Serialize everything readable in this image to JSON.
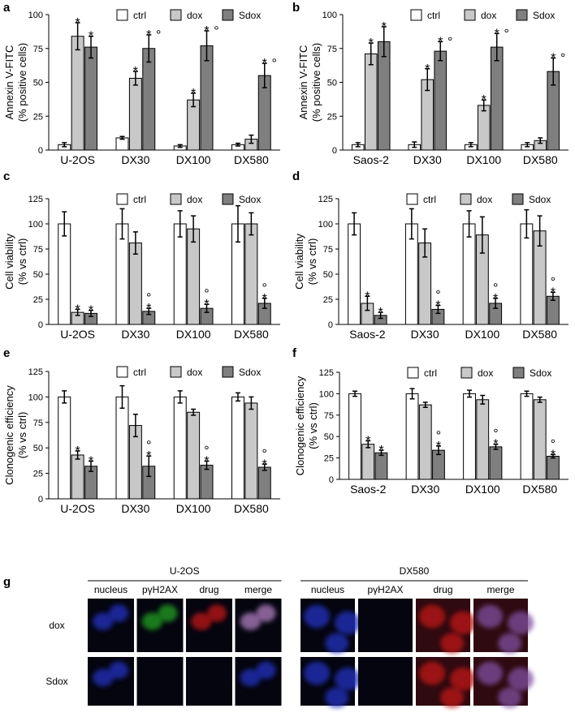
{
  "chart_data": [
    {
      "type": "bar",
      "panel": "a",
      "ylabel": [
        "Annexin V-FITC",
        "(% positive cells)"
      ],
      "categories": [
        "U-2OS",
        "DX30",
        "DX100",
        "DX580"
      ],
      "ylim": [
        0,
        100
      ],
      "yticks": [
        0,
        25,
        50,
        75,
        100
      ],
      "annotation_layout": "inline",
      "series": [
        {
          "name": "ctrl",
          "color": "#ffffff",
          "values": [
            4,
            9,
            3,
            4
          ],
          "errors": [
            1.5,
            1,
            1,
            1
          ]
        },
        {
          "name": "dox",
          "color": "#c8c8c8",
          "values": [
            84,
            53,
            37,
            8
          ],
          "errors": [
            10,
            5,
            5,
            3
          ],
          "annotations": [
            [
              "*"
            ],
            [
              "*"
            ],
            [
              "*"
            ],
            null
          ]
        },
        {
          "name": "Sdox",
          "color": "#7f7f7f",
          "values": [
            76,
            75,
            77,
            55
          ],
          "errors": [
            8,
            10,
            11,
            9
          ],
          "annotations": [
            [
              "*"
            ],
            [
              "*",
              "°"
            ],
            [
              "*",
              "°"
            ],
            [
              "*",
              "°"
            ]
          ]
        }
      ]
    },
    {
      "type": "bar",
      "panel": "b",
      "ylabel": [
        "Annexin V-FITC",
        "(% positive cells)"
      ],
      "categories": [
        "Saos-2",
        "DX30",
        "DX100",
        "DX580"
      ],
      "ylim": [
        0,
        100
      ],
      "yticks": [
        0,
        25,
        50,
        75,
        100
      ],
      "annotation_layout": "inline",
      "series": [
        {
          "name": "ctrl",
          "color": "#ffffff",
          "values": [
            4,
            4,
            4,
            4
          ],
          "errors": [
            1.5,
            2,
            1.5,
            1.5
          ]
        },
        {
          "name": "dox",
          "color": "#c8c8c8",
          "values": [
            71,
            52,
            33,
            7
          ],
          "errors": [
            8,
            8,
            4,
            2
          ],
          "annotations": [
            [
              "*"
            ],
            [
              "*"
            ],
            [
              "*"
            ],
            null
          ]
        },
        {
          "name": "Sdox",
          "color": "#7f7f7f",
          "values": [
            80,
            73,
            76,
            58
          ],
          "errors": [
            11,
            7,
            10,
            10
          ],
          "annotations": [
            [
              "*"
            ],
            [
              "*",
              "°"
            ],
            [
              "*",
              "°"
            ],
            [
              "*",
              "°"
            ]
          ]
        }
      ]
    },
    {
      "type": "bar",
      "panel": "c",
      "ylabel": [
        "Cell viability",
        "(% vs ctrl)"
      ],
      "categories": [
        "U-2OS",
        "DX30",
        "DX100",
        "DX580"
      ],
      "ylim": [
        0,
        125
      ],
      "yticks": [
        0,
        25,
        50,
        75,
        100,
        125
      ],
      "annotation_layout": "stacked",
      "series": [
        {
          "name": "ctrl",
          "color": "#ffffff",
          "values": [
            100,
            100,
            100,
            100
          ],
          "errors": [
            12,
            15,
            13,
            18
          ]
        },
        {
          "name": "dox",
          "color": "#c8c8c8",
          "values": [
            12,
            81,
            95,
            100
          ],
          "errors": [
            3,
            11,
            13,
            11
          ],
          "annotations": [
            [
              "*"
            ],
            null,
            null,
            null
          ]
        },
        {
          "name": "Sdox",
          "color": "#7f7f7f",
          "values": [
            11,
            13,
            16,
            21
          ],
          "errors": [
            3,
            3,
            4,
            5
          ],
          "annotations": [
            [
              "*"
            ],
            [
              "*",
              "°"
            ],
            [
              "*",
              "°"
            ],
            [
              "*",
              "°"
            ]
          ]
        }
      ]
    },
    {
      "type": "bar",
      "panel": "d",
      "ylabel": [
        "Cell viability",
        "(% vs ctrl)"
      ],
      "categories": [
        "Saos-2",
        "DX30",
        "DX100",
        "DX580"
      ],
      "ylim": [
        0,
        125
      ],
      "yticks": [
        0,
        25,
        50,
        75,
        100,
        125
      ],
      "annotation_layout": "stacked",
      "series": [
        {
          "name": "ctrl",
          "color": "#ffffff",
          "values": [
            100,
            100,
            100,
            100
          ],
          "errors": [
            11,
            15,
            13,
            14
          ]
        },
        {
          "name": "dox",
          "color": "#c8c8c8",
          "values": [
            21,
            81,
            89,
            93
          ],
          "errors": [
            7,
            14,
            18,
            15
          ],
          "annotations": [
            [
              "*"
            ],
            null,
            null,
            null
          ]
        },
        {
          "name": "Sdox",
          "color": "#7f7f7f",
          "values": [
            9,
            15,
            21,
            28
          ],
          "errors": [
            3,
            4,
            5,
            4
          ],
          "annotations": [
            [
              "*"
            ],
            [
              "*",
              "°"
            ],
            [
              "*",
              "°"
            ],
            [
              "*",
              "°"
            ]
          ]
        }
      ]
    },
    {
      "type": "bar",
      "panel": "e",
      "ylabel": [
        "Clonogenic efficiency",
        "(% vs ctrl)"
      ],
      "categories": [
        "U-2OS",
        "DX30",
        "DX100",
        "DX580"
      ],
      "ylim": [
        0,
        125
      ],
      "yticks": [
        0,
        25,
        50,
        75,
        100,
        125
      ],
      "annotation_layout": "stacked",
      "series": [
        {
          "name": "ctrl",
          "color": "#ffffff",
          "values": [
            100,
            100,
            100,
            100
          ],
          "errors": [
            6,
            11,
            6,
            4
          ]
        },
        {
          "name": "dox",
          "color": "#c8c8c8",
          "values": [
            43,
            72,
            85,
            94
          ],
          "errors": [
            4,
            11,
            3,
            6
          ],
          "annotations": [
            [
              "*"
            ],
            null,
            null,
            null
          ]
        },
        {
          "name": "Sdox",
          "color": "#7f7f7f",
          "values": [
            32,
            32,
            33,
            31
          ],
          "errors": [
            5,
            10,
            4,
            3
          ],
          "annotations": [
            [
              "*"
            ],
            [
              "*",
              "°"
            ],
            [
              "*",
              "°"
            ],
            [
              "*",
              "°"
            ]
          ]
        }
      ]
    },
    {
      "type": "bar",
      "panel": "f",
      "ylabel": [
        "Clonogenic efficiency",
        "(% vs ctrl)"
      ],
      "categories": [
        "Saos-2",
        "DX30",
        "DX100",
        "DX580"
      ],
      "ylim": [
        0,
        125
      ],
      "yticks": [
        0,
        25,
        50,
        75,
        100,
        125
      ],
      "annotation_layout": "stacked",
      "series": [
        {
          "name": "ctrl",
          "color": "#ffffff",
          "values": [
            100,
            100,
            100,
            100
          ],
          "errors": [
            3,
            6,
            4,
            3
          ]
        },
        {
          "name": "dox",
          "color": "#c8c8c8",
          "values": [
            41,
            87,
            93,
            93
          ],
          "errors": [
            4,
            3,
            5,
            3
          ],
          "annotations": [
            [
              "*"
            ],
            null,
            null,
            null
          ]
        },
        {
          "name": "Sdox",
          "color": "#7f7f7f",
          "values": [
            31,
            34,
            38,
            27
          ],
          "errors": [
            3,
            5,
            3,
            2
          ],
          "annotations": [
            [
              "*"
            ],
            [
              "*",
              "°"
            ],
            [
              "*",
              "°"
            ],
            [
              "*",
              "°"
            ]
          ]
        }
      ]
    }
  ],
  "panel_g": {
    "label": "g",
    "rows": [
      "dox",
      "Sdox"
    ],
    "groups": [
      {
        "name": "U-2OS",
        "columns": [
          "nucleus",
          "pγH2AX",
          "drug",
          "merge"
        ]
      },
      {
        "name": "DX580",
        "columns": [
          "nucleus",
          "pγH2AX",
          "drug",
          "merge"
        ]
      }
    ]
  }
}
